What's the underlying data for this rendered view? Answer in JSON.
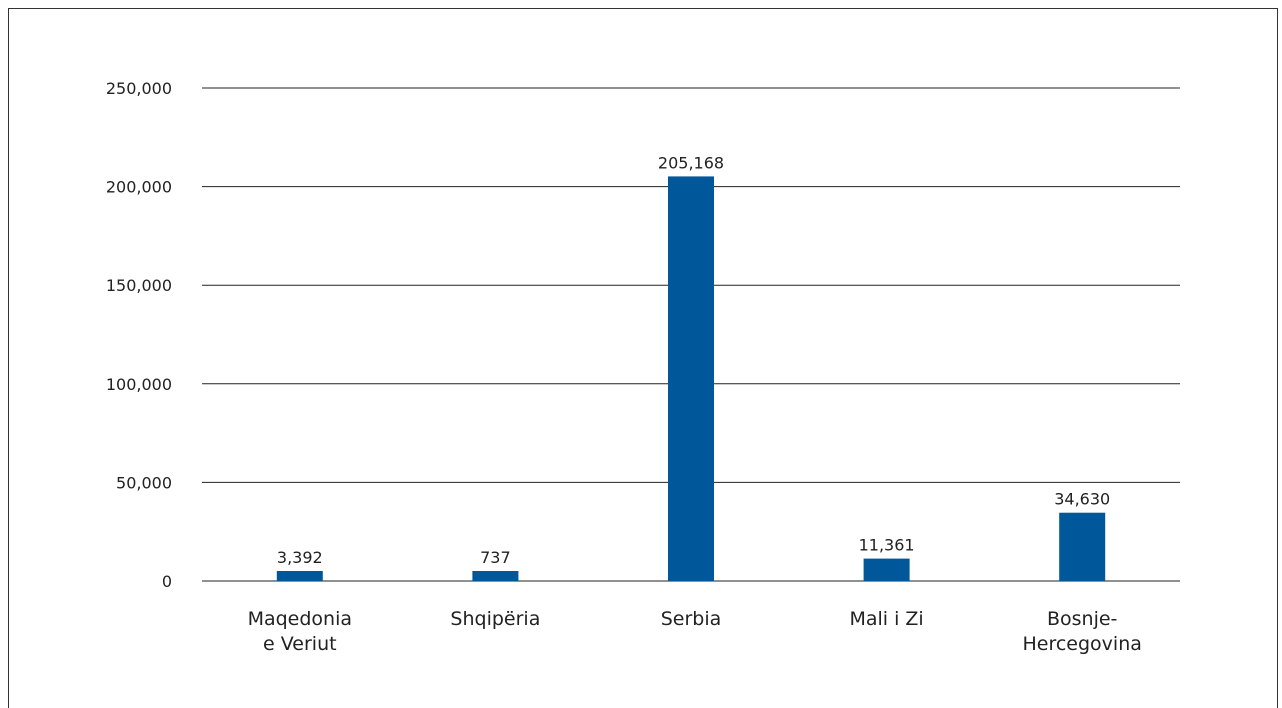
{
  "chart_data": {
    "type": "bar",
    "categories": [
      "Maqedonia e Veriut",
      "Shqipëria",
      "Serbia",
      "Mali i Zi",
      "Bosnje-Hercegovina"
    ],
    "category_lines": [
      [
        "Maqedonia",
        "e Veriut"
      ],
      [
        "Shqipëria"
      ],
      [
        "Serbia"
      ],
      [
        "Mali i Zi"
      ],
      [
        "Bosnje-",
        "Hercegovina"
      ]
    ],
    "values": [
      3392,
      737,
      205168,
      11361,
      34630
    ],
    "data_labels": [
      "3,392",
      "737",
      "205,168",
      "11,361",
      "34,630"
    ],
    "yticks": [
      0,
      50000,
      100000,
      150000,
      200000,
      250000
    ],
    "ytick_labels": [
      "0",
      "50,000",
      "100,000",
      "150,000",
      "200,000",
      "250,000"
    ],
    "ylim": [
      0,
      250000
    ],
    "grid": true,
    "legend": "none",
    "title": "",
    "xlabel": "",
    "ylabel": "",
    "bar_color": "#00589b"
  }
}
